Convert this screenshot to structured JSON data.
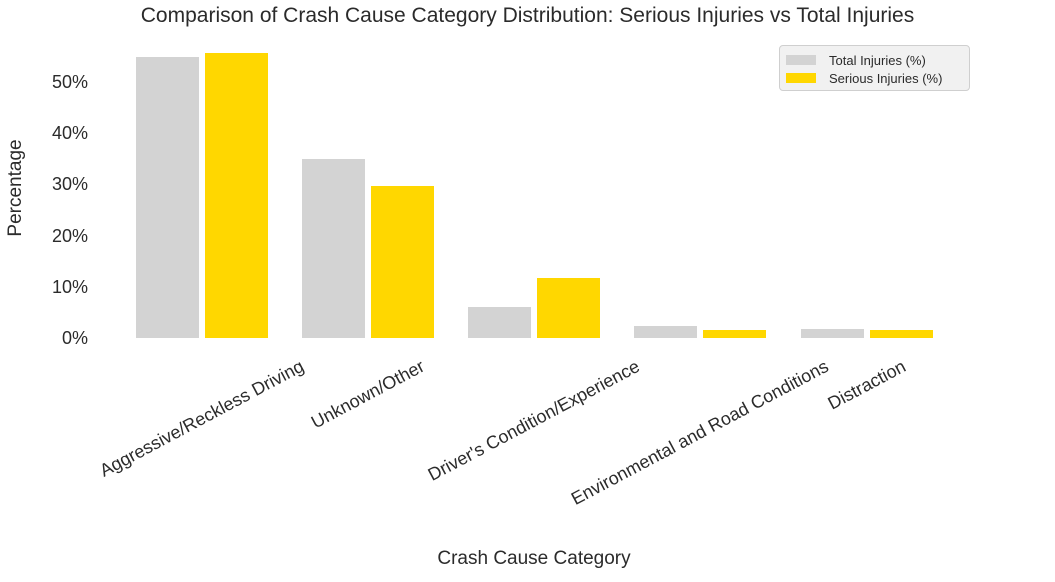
{
  "chart_data": {
    "type": "bar",
    "title": "Comparison of Crash Cause Category Distribution: Serious Injuries vs Total Injuries",
    "xlabel": "Crash Cause Category",
    "ylabel": "Percentage",
    "categories": [
      "Aggressive/Reckless Driving",
      "Unknown/Other",
      "Driver's Condition/Experience",
      "Environmental and Road Conditions",
      "Distraction"
    ],
    "series": [
      {
        "name": "Total Injuries (%)",
        "color": "#d3d3d3",
        "values": [
          54.9,
          34.9,
          6.1,
          2.3,
          1.7
        ]
      },
      {
        "name": "Serious Injuries (%)",
        "color": "#ffd700",
        "values": [
          55.7,
          29.6,
          11.7,
          1.5,
          1.6
        ]
      }
    ],
    "ytick_values": [
      0,
      10,
      20,
      30,
      40,
      50
    ],
    "ytick_labels": [
      "0%",
      "10%",
      "20%",
      "30%",
      "40%",
      "50%"
    ],
    "ylim": [
      0,
      58
    ],
    "grid": false,
    "legend_position": "upper right",
    "background_color": "#ffffff",
    "text_color": "#2b2b2b"
  }
}
